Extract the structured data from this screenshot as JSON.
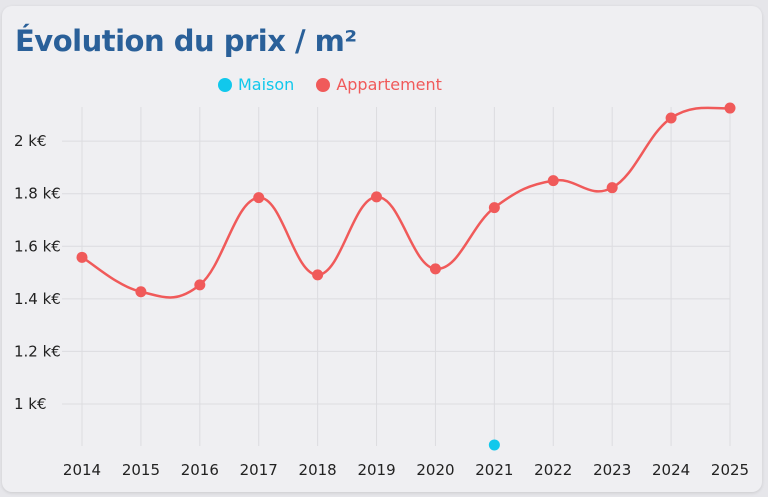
{
  "title": "Évolution du prix / m²",
  "chart_data": {
    "type": "line",
    "title": "Évolution du prix / m²",
    "categories": [
      "2014",
      "2015",
      "2016",
      "2017",
      "2018",
      "2019",
      "2020",
      "2021",
      "2022",
      "2023",
      "2024",
      "2025"
    ],
    "series": [
      {
        "name": "Maison",
        "color": "#11c8ec",
        "values": [
          null,
          null,
          null,
          null,
          null,
          null,
          null,
          0.844,
          null,
          null,
          null,
          null
        ]
      },
      {
        "name": "Appartement",
        "color": "#f05a5a",
        "values": [
          1.558,
          1.427,
          1.453,
          1.785,
          1.491,
          1.788,
          1.514,
          1.747,
          1.85,
          1.823,
          2.088,
          2.126
        ]
      }
    ],
    "yticks": [
      1,
      1.2,
      1.4,
      1.6,
      1.8,
      2
    ],
    "ytick_labels": [
      "1 k€",
      "1.2 k€",
      "1.4 k€",
      "1.6 k€",
      "1.8 k€",
      "2 k€"
    ],
    "ylim": [
      0.84,
      2.13
    ],
    "yunit": "k€",
    "grid": true,
    "legend": "top-center",
    "smooth": true
  }
}
